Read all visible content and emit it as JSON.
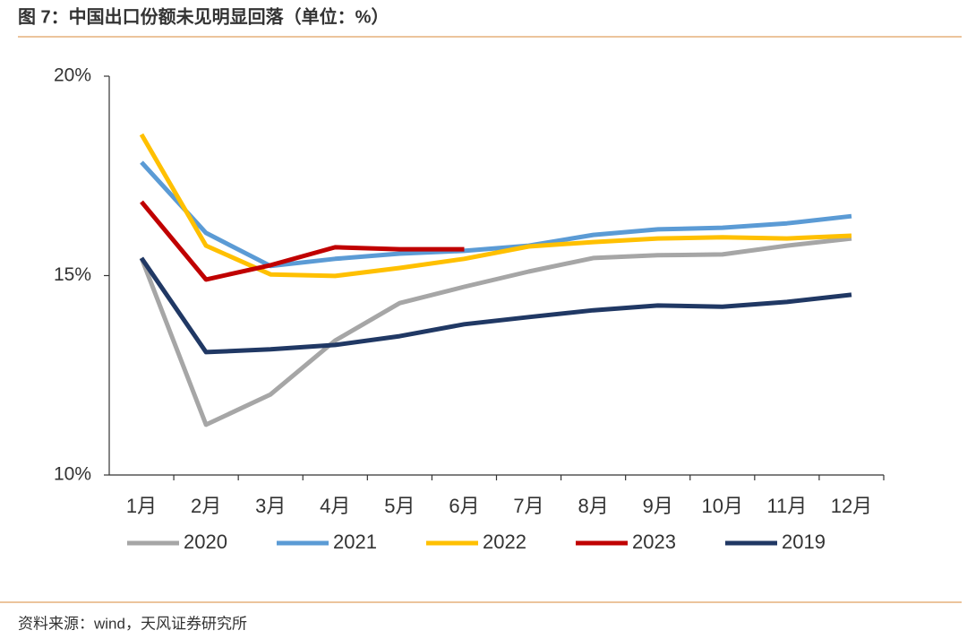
{
  "chart_data": {
    "type": "line",
    "title": "图 7：中国出口份额未见明显回落（单位：%）",
    "source": "资料来源：wind，天风证券研究所",
    "categories": [
      "1月",
      "2月",
      "3月",
      "4月",
      "5月",
      "6月",
      "7月",
      "8月",
      "9月",
      "10月",
      "11月",
      "12月"
    ],
    "series": [
      {
        "name": "2020",
        "color": "#a6a6a6",
        "values": [
          15.44,
          11.26,
          12.02,
          13.37,
          14.31,
          14.72,
          15.1,
          15.44,
          15.51,
          15.53,
          15.75,
          15.93
        ]
      },
      {
        "name": "2021",
        "color": "#5b9bd5",
        "values": [
          17.84,
          16.07,
          15.24,
          15.42,
          15.55,
          15.62,
          15.75,
          16.02,
          16.16,
          16.2,
          16.31,
          16.49
        ]
      },
      {
        "name": "2022",
        "color": "#ffc000",
        "values": [
          18.54,
          15.75,
          15.03,
          14.99,
          15.19,
          15.42,
          15.73,
          15.84,
          15.93,
          15.96,
          15.93,
          16.0
        ]
      },
      {
        "name": "2023",
        "color": "#c00000",
        "values": [
          16.85,
          14.9,
          15.26,
          15.71,
          15.66,
          15.66,
          null,
          null,
          null,
          null,
          null,
          null
        ]
      },
      {
        "name": "2019",
        "color": "#203864",
        "values": [
          15.44,
          13.08,
          13.15,
          13.26,
          13.48,
          13.78,
          13.96,
          14.13,
          14.25,
          14.22,
          14.34,
          14.52
        ]
      }
    ],
    "ylim": [
      10,
      20
    ],
    "yticks": [
      {
        "value": 10,
        "label": "10%"
      },
      {
        "value": 15,
        "label": "15%"
      },
      {
        "value": 20,
        "label": "20%"
      }
    ],
    "legend": "bottom"
  }
}
